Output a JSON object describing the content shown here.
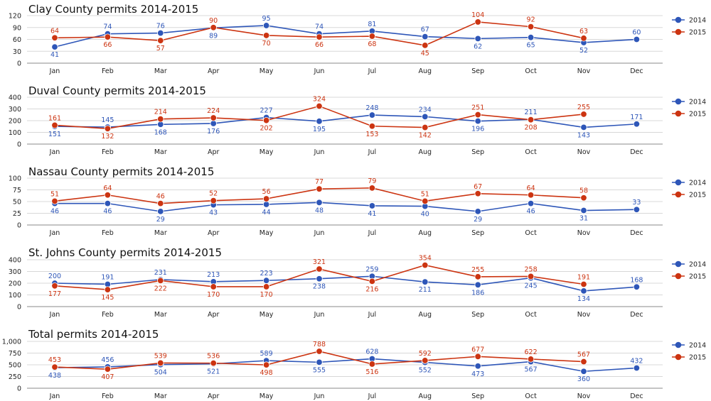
{
  "chart_data": [
    {
      "type": "line",
      "title": "Clay County permits 2014-2015",
      "categories": [
        "Jan",
        "Feb",
        "Mar",
        "Apr",
        "May",
        "Jun",
        "Jul",
        "Aug",
        "Sep",
        "Oct",
        "Nov",
        "Dec"
      ],
      "yticks": [
        0,
        30,
        60,
        90,
        120
      ],
      "ytick_labels": [
        "0",
        "30",
        "60",
        "90",
        "120"
      ],
      "ylim": [
        0,
        120
      ],
      "grid": true,
      "legend_position": "right",
      "series": [
        {
          "name": "2014",
          "color": "#2e56b8",
          "values": [
            41,
            74,
            76,
            89,
            95,
            74,
            81,
            67,
            62,
            65,
            52,
            60
          ]
        },
        {
          "name": "2015",
          "color": "#cc3411",
          "values": [
            64,
            66,
            57,
            90,
            70,
            66,
            68,
            45,
            104,
            92,
            63,
            null
          ]
        }
      ]
    },
    {
      "type": "line",
      "title": "Duval County permits 2014-2015",
      "categories": [
        "Jan",
        "Feb",
        "Mar",
        "Apr",
        "May",
        "Jun",
        "Jul",
        "Aug",
        "Sep",
        "Oct",
        "Nov",
        "Dec"
      ],
      "yticks": [
        0,
        100,
        200,
        300,
        400
      ],
      "ytick_labels": [
        "0",
        "100",
        "200",
        "300",
        "400"
      ],
      "ylim": [
        0,
        400
      ],
      "grid": true,
      "legend_position": "right",
      "series": [
        {
          "name": "2014",
          "color": "#2e56b8",
          "values": [
            151,
            145,
            168,
            176,
            227,
            195,
            248,
            234,
            196,
            211,
            143,
            171
          ]
        },
        {
          "name": "2015",
          "color": "#cc3411",
          "values": [
            161,
            132,
            214,
            224,
            202,
            324,
            153,
            142,
            251,
            208,
            255,
            null
          ]
        }
      ]
    },
    {
      "type": "line",
      "title": "Nassau County permits 2014-2015",
      "categories": [
        "Jan",
        "Feb",
        "Mar",
        "Apr",
        "May",
        "Jun",
        "Jul",
        "Aug",
        "Sep",
        "Oct",
        "Nov",
        "Dec"
      ],
      "yticks": [
        0,
        25,
        50,
        75,
        100
      ],
      "ytick_labels": [
        "0",
        "25",
        "50",
        "75",
        "100"
      ],
      "ylim": [
        0,
        100
      ],
      "grid": true,
      "legend_position": "right",
      "series": [
        {
          "name": "2014",
          "color": "#2e56b8",
          "values": [
            46,
            46,
            29,
            43,
            44,
            48,
            41,
            40,
            29,
            46,
            31,
            33
          ]
        },
        {
          "name": "2015",
          "color": "#cc3411",
          "values": [
            51,
            64,
            46,
            52,
            56,
            77,
            79,
            51,
            67,
            64,
            58,
            null
          ]
        }
      ]
    },
    {
      "type": "line",
      "title": "St. Johns County permits 2014-2015",
      "categories": [
        "Jan",
        "Feb",
        "Mar",
        "Apr",
        "May",
        "Jun",
        "Jul",
        "Aug",
        "Sep",
        "Oct",
        "Nov",
        "Dec"
      ],
      "yticks": [
        0,
        100,
        200,
        300,
        400
      ],
      "ytick_labels": [
        "0",
        "100",
        "200",
        "300",
        "400"
      ],
      "ylim": [
        0,
        400
      ],
      "grid": true,
      "legend_position": "right",
      "series": [
        {
          "name": "2014",
          "color": "#2e56b8",
          "values": [
            200,
            191,
            231,
            213,
            223,
            238,
            259,
            211,
            186,
            245,
            134,
            168
          ]
        },
        {
          "name": "2015",
          "color": "#cc3411",
          "values": [
            177,
            145,
            222,
            170,
            170,
            321,
            216,
            354,
            255,
            258,
            191,
            null
          ]
        }
      ]
    },
    {
      "type": "line",
      "title": "Total permits 2014-2015",
      "categories": [
        "Jan",
        "Feb",
        "Mar",
        "Apr",
        "May",
        "Jun",
        "Jul",
        "Aug",
        "Sep",
        "Oct",
        "Nov",
        "Dec"
      ],
      "yticks": [
        0,
        250,
        500,
        750,
        1000
      ],
      "ytick_labels": [
        "0",
        "250",
        "500",
        "750",
        "1,000"
      ],
      "ylim": [
        0,
        1000
      ],
      "grid": true,
      "legend_position": "right",
      "series": [
        {
          "name": "2014",
          "color": "#2e56b8",
          "values": [
            438,
            456,
            504,
            521,
            589,
            555,
            628,
            552,
            473,
            567,
            360,
            432
          ]
        },
        {
          "name": "2015",
          "color": "#cc3411",
          "values": [
            453,
            407,
            539,
            536,
            498,
            788,
            516,
            592,
            677,
            622,
            567,
            null
          ]
        }
      ]
    }
  ]
}
